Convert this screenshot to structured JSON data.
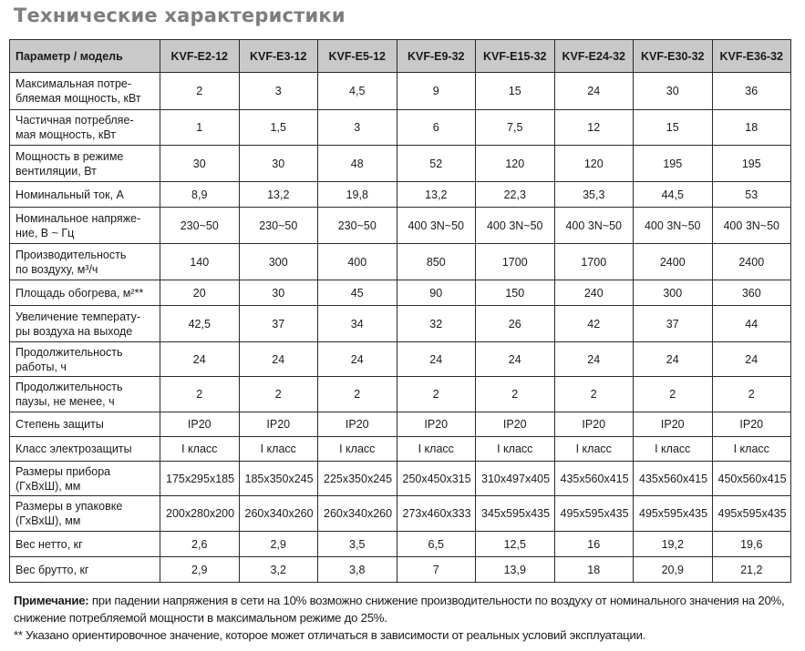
{
  "title": "Технические характеристики",
  "table": {
    "header_param": "Параметр / модель",
    "models": [
      "KVF-E2-12",
      "KVF-E3-12",
      "KVF-E5-12",
      "KVF-E9-32",
      "KVF-E15-32",
      "KVF-E24-32",
      "KVF-E30-32",
      "KVF-E36-32"
    ],
    "rows": [
      {
        "label": "Максимальная потре-\nбляемая мощность, кВт",
        "values": [
          "2",
          "3",
          "4,5",
          "9",
          "15",
          "24",
          "30",
          "36"
        ]
      },
      {
        "label": "Частичная потребляе-\nмая мощность, кВт",
        "values": [
          "1",
          "1,5",
          "3",
          "6",
          "7,5",
          "12",
          "15",
          "18"
        ]
      },
      {
        "label": "Мощность в режиме\nвентиляции, Вт",
        "values": [
          "30",
          "30",
          "48",
          "52",
          "120",
          "120",
          "195",
          "195"
        ]
      },
      {
        "label": "Номинальный ток, А",
        "values": [
          "8,9",
          "13,2",
          "19,8",
          "13,2",
          "22,3",
          "35,3",
          "44,5",
          "53"
        ]
      },
      {
        "label": "Номинальное напряже-\nние, В ~ Гц",
        "values": [
          "230~50",
          "230~50",
          "230~50",
          "400 3N~50",
          "400 3N~50",
          "400 3N~50",
          "400 3N~50",
          "400 3N~50"
        ]
      },
      {
        "label": "Производительность\nпо воздуху, м³/ч",
        "values": [
          "140",
          "300",
          "400",
          "850",
          "1700",
          "1700",
          "2400",
          "2400"
        ]
      },
      {
        "label": "Площадь обогрева, м²**",
        "values": [
          "20",
          "30",
          "45",
          "90",
          "150",
          "240",
          "300",
          "360"
        ]
      },
      {
        "label": "Увеличение температу-\nры воздуха на выходе",
        "values": [
          "42,5",
          "37",
          "34",
          "32",
          "26",
          "42",
          "37",
          "44"
        ]
      },
      {
        "label": "Продолжительность\nработы, ч",
        "values": [
          "24",
          "24",
          "24",
          "24",
          "24",
          "24",
          "24",
          "24"
        ]
      },
      {
        "label": "Продолжительность\nпаузы, не менее, ч",
        "values": [
          "2",
          "2",
          "2",
          "2",
          "2",
          "2",
          "2",
          "2"
        ]
      },
      {
        "label": "Степень защиты",
        "values": [
          "IP20",
          "IP20",
          "IP20",
          "IP20",
          "IP20",
          "IP20",
          "IP20",
          "IP20"
        ]
      },
      {
        "label": "Класс электрозащиты",
        "values": [
          "I класс",
          "I класс",
          "I класс",
          "I класс",
          "I класс",
          "I класс",
          "I класс",
          "I класс"
        ]
      },
      {
        "label": "Размеры прибора\n(ГхВхШ), мм",
        "values": [
          "175x295x185",
          "185x350x245",
          "225x350x245",
          "250x450x315",
          "310x497x405",
          "435x560x415",
          "435x560x415",
          "450x560x415"
        ]
      },
      {
        "label": "Размеры в упаковке\n(ГхВхШ), мм",
        "values": [
          "200x280x200",
          "260x340x260",
          "260x340x260",
          "273x460x333",
          "345x595x435",
          "495x595x435",
          "495x595x435",
          "495x595x435"
        ]
      },
      {
        "label": "Вес нетто, кг",
        "values": [
          "2,6",
          "2,9",
          "3,5",
          "6,5",
          "12,5",
          "16",
          "19,2",
          "19,6"
        ]
      },
      {
        "label": "Вес брутто, кг",
        "values": [
          "2,9",
          "3,2",
          "3,8",
          "7",
          "13,9",
          "18",
          "20,9",
          "21,2"
        ]
      }
    ]
  },
  "note": {
    "label": "Примечание:",
    "text": " при падении напряжения в сети на 10% возможно снижение производительности по воздуху от номинального значения на 20%, снижение потребляемой мощности в максимальном режиме до 25%.",
    "footnote": "** Указано ориентировочное значение, которое может отличаться в зависимости от реальных условий эксплуатации."
  }
}
